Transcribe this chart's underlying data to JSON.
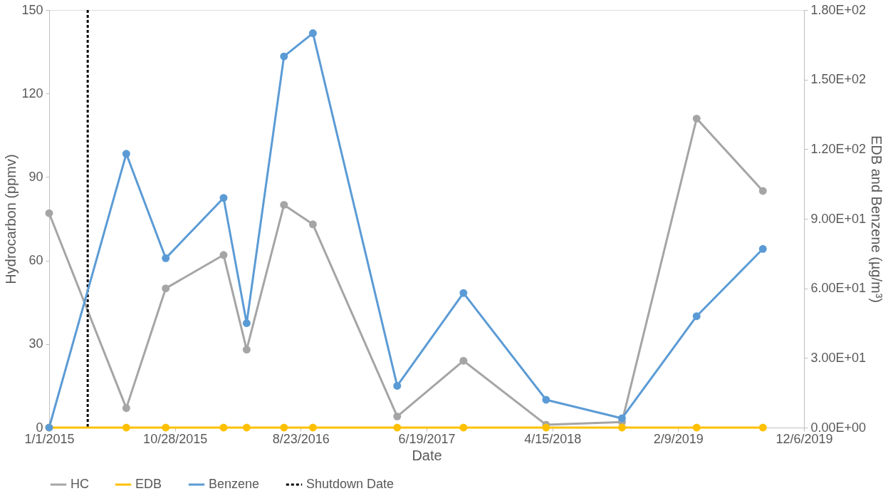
{
  "chart_data": {
    "type": "line",
    "xlabel": "Date",
    "ylabel": "Hydrocarbon (ppmv)",
    "y2label": "EDB and Benzene (µg/m³)",
    "x": [
      "2015-01-01",
      "2015-07-04",
      "2015-10-06",
      "2016-02-21",
      "2016-04-16",
      "2016-07-14",
      "2016-09-21",
      "2017-04-10",
      "2017-09-15",
      "2018-03-31",
      "2018-09-28",
      "2019-03-25",
      "2019-08-30"
    ],
    "series": [
      {
        "name": "HC",
        "color": "#a5a5a5",
        "values": [
          77,
          7,
          50,
          62,
          28,
          80,
          73,
          4,
          24,
          1,
          2,
          111,
          85
        ]
      },
      {
        "name": "EDB",
        "color": "#ffc000",
        "axis": "y2",
        "values": [
          0,
          0,
          0,
          0,
          0,
          0,
          0,
          0,
          0,
          0,
          0,
          0,
          0
        ]
      },
      {
        "name": "Benzene",
        "color": "#5b9bd5",
        "axis": "y2",
        "values": [
          0,
          118,
          73,
          99,
          45,
          160,
          170,
          18,
          58,
          12,
          4,
          48,
          77
        ]
      }
    ],
    "ref_lines": [
      {
        "axis": "x",
        "value": "2015-04-03",
        "label": "Shutdown Date",
        "color": "#000000",
        "line_style": "dashed"
      }
    ],
    "xlim": [
      "2015-01-01",
      "2019-12-06"
    ],
    "xticks": [
      {
        "value": "2015-01-01",
        "label": "1/1/2015"
      },
      {
        "value": "2015-10-28",
        "label": "10/28/2015"
      },
      {
        "value": "2016-08-23",
        "label": "8/23/2016"
      },
      {
        "value": "2017-06-19",
        "label": "6/19/2017"
      },
      {
        "value": "2018-04-15",
        "label": "4/15/2018"
      },
      {
        "value": "2019-02-09",
        "label": "2/9/2019"
      },
      {
        "value": "2019-12-06",
        "label": "12/6/2019"
      }
    ],
    "ylim": [
      0,
      150
    ],
    "yticks": [
      0,
      30,
      60,
      90,
      120,
      150
    ],
    "y2lim": [
      0,
      180
    ],
    "y2ticks": [
      {
        "value": 0,
        "label": "0.00E+00"
      },
      {
        "value": 30,
        "label": "3.00E+01"
      },
      {
        "value": 60,
        "label": "6.00E+01"
      },
      {
        "value": 90,
        "label": "9.00E+01"
      },
      {
        "value": 120,
        "label": "1.20E+02"
      },
      {
        "value": 150,
        "label": "1.50E+02"
      },
      {
        "value": 180,
        "label": "1.80E+02"
      }
    ],
    "grid": false,
    "legend": "bottom",
    "marker": "circle",
    "line_style": "solid"
  }
}
